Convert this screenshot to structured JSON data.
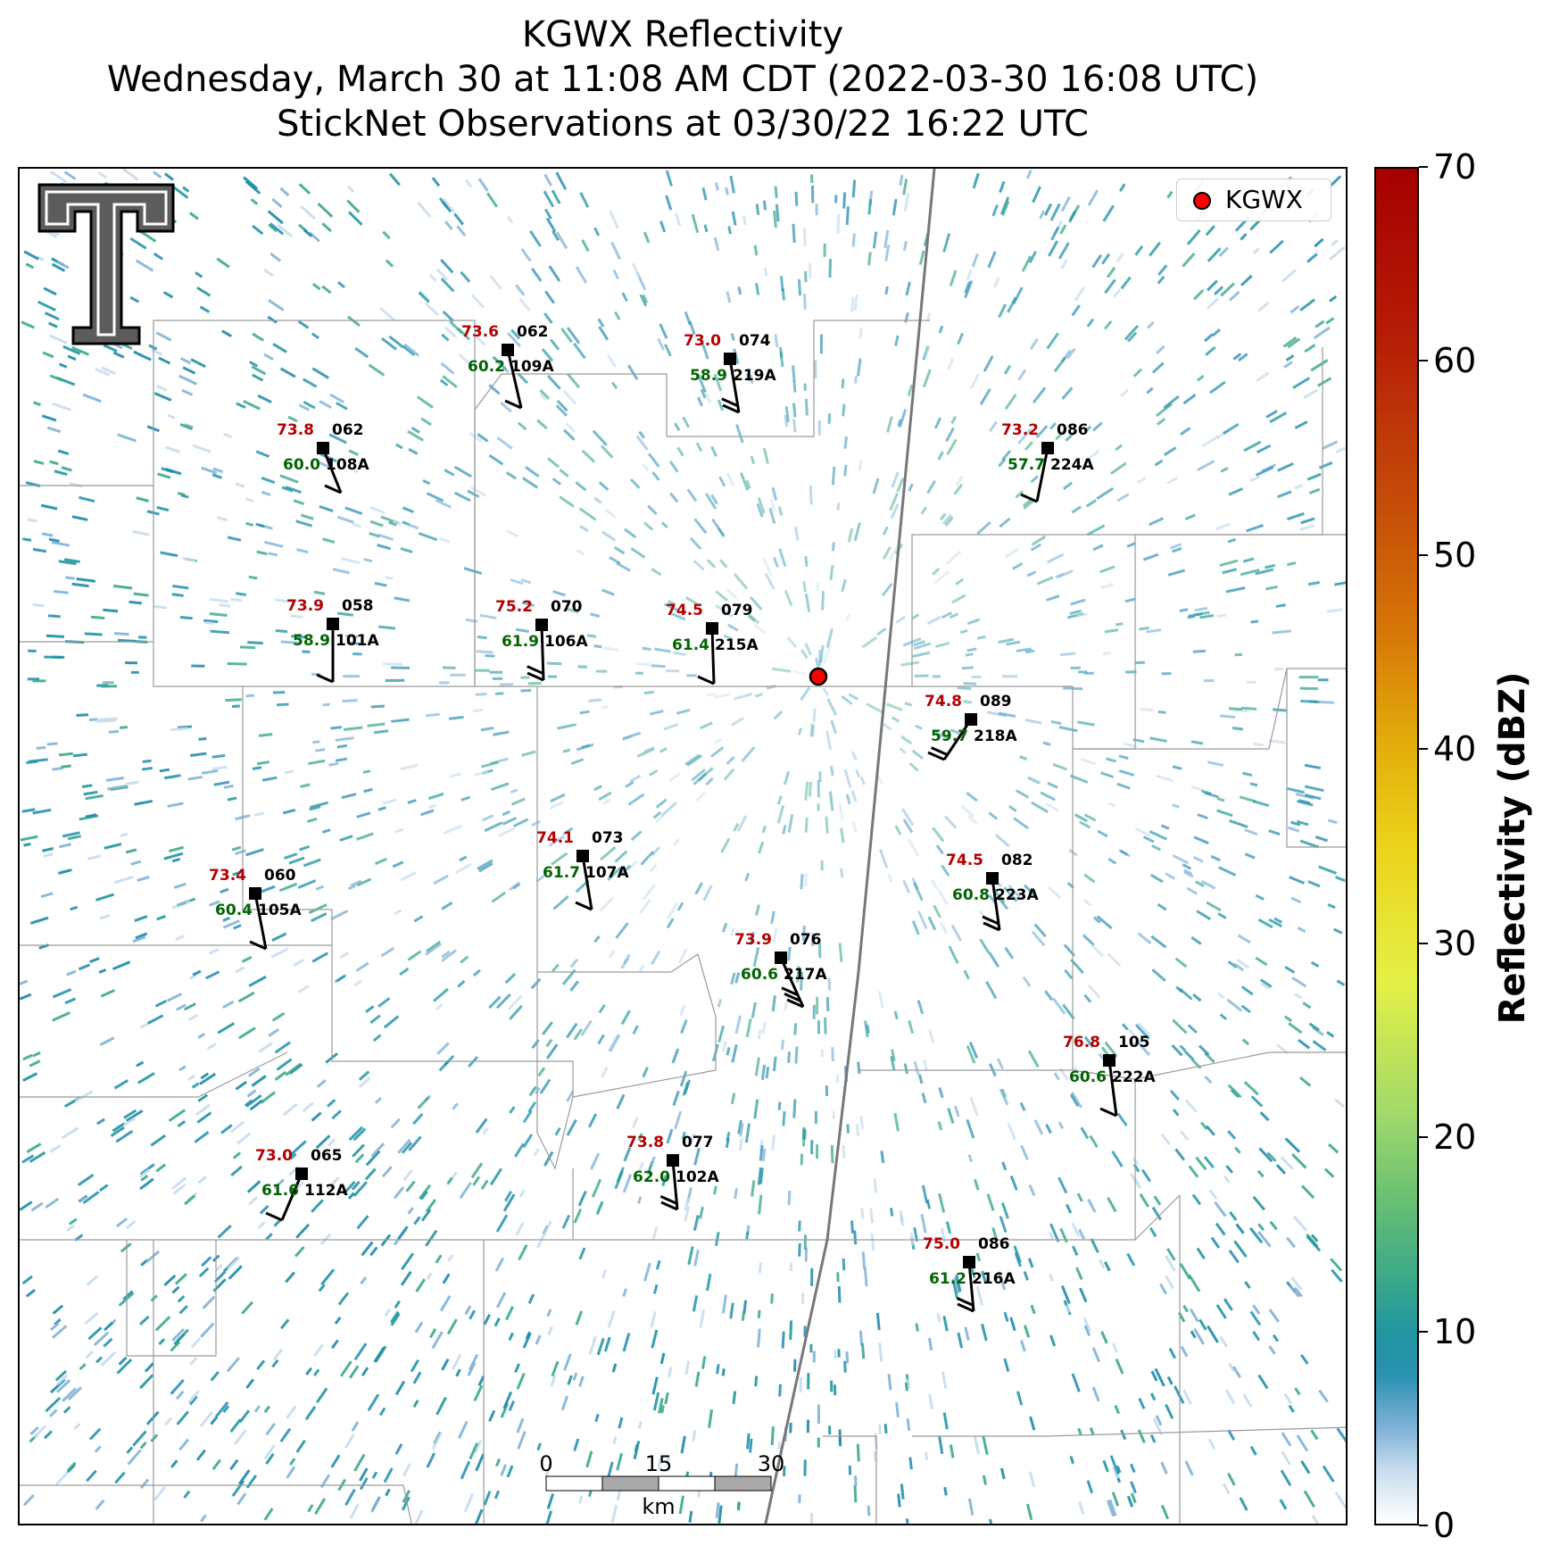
{
  "title": {
    "line1": "KGWX Reflectivity",
    "line2": "Wednesday, March 30 at 11:08 AM CDT (2022-03-30 16:08 UTC)",
    "line3": "StickNet Observations at 03/30/22 16:22 UTC"
  },
  "legend": {
    "label": "KGWX",
    "marker_color": "#ff0000"
  },
  "radar": {
    "name": "KGWX"
  },
  "colorbar": {
    "title": "Reflectivity (dBZ)",
    "ticks": [
      "0",
      "10",
      "20",
      "30",
      "40",
      "50",
      "60",
      "70"
    ],
    "min": 0,
    "max": 70
  },
  "scale_bar": {
    "labels": [
      "0",
      "15",
      "30"
    ],
    "unit": "km"
  },
  "logo": {
    "name": "texas-tech-double-t-logo"
  },
  "colors": {
    "temperature": "#b30000",
    "dewpoint": "#006400",
    "wind_id": "#000000"
  },
  "stations": [
    {
      "id": "108A",
      "temp": "73.8",
      "dew": "60.0",
      "wind": "062",
      "barb": [
        20,
        50
      ],
      "flags": 1
    },
    {
      "id": "109A",
      "temp": "73.6",
      "dew": "60.2",
      "wind": "062",
      "barb": [
        15,
        65
      ],
      "flags": 1
    },
    {
      "id": "219A",
      "temp": "73.0",
      "dew": "58.9",
      "wind": "074",
      "barb": [
        10,
        60
      ],
      "flags": 2
    },
    {
      "id": "224A",
      "temp": "73.2",
      "dew": "57.7",
      "wind": "086",
      "barb": [
        -12,
        60
      ],
      "flags": 1
    },
    {
      "id": "101A",
      "temp": "73.9",
      "dew": "58.9",
      "wind": "058",
      "barb": [
        0,
        65
      ],
      "flags": 1
    },
    {
      "id": "106A",
      "temp": "75.2",
      "dew": "61.9",
      "wind": "070",
      "barb": [
        2,
        62
      ],
      "flags": 2
    },
    {
      "id": "215A",
      "temp": "74.5",
      "dew": "61.4",
      "wind": "079",
      "barb": [
        2,
        62
      ],
      "flags": 1
    },
    {
      "id": "218A",
      "temp": "74.8",
      "dew": "59.7",
      "wind": "089",
      "barb": [
        -30,
        45
      ],
      "flags": 2
    },
    {
      "id": "107A",
      "temp": "74.1",
      "dew": "61.7",
      "wind": "073",
      "barb": [
        10,
        60
      ],
      "flags": 1
    },
    {
      "id": "105A",
      "temp": "73.4",
      "dew": "60.4",
      "wind": "060",
      "barb": [
        12,
        62
      ],
      "flags": 1
    },
    {
      "id": "223A",
      "temp": "74.5",
      "dew": "60.8",
      "wind": "082",
      "barb": [
        8,
        58
      ],
      "flags": 2
    },
    {
      "id": "217A",
      "temp": "73.9",
      "dew": "60.6",
      "wind": "076",
      "barb": [
        25,
        55
      ],
      "flags": 3
    },
    {
      "id": "222A",
      "temp": "76.8",
      "dew": "60.6",
      "wind": "105",
      "barb": [
        8,
        62
      ],
      "flags": 1
    },
    {
      "id": "112A",
      "temp": "73.0",
      "dew": "61.6",
      "wind": "065",
      "barb": [
        -22,
        52
      ],
      "flags": 1
    },
    {
      "id": "102A",
      "temp": "73.8",
      "dew": "62.0",
      "wind": "077",
      "barb": [
        5,
        55
      ],
      "flags": 2
    },
    {
      "id": "216A",
      "temp": "75.0",
      "dew": "61.2",
      "wind": "086",
      "barb": [
        5,
        55
      ],
      "flags": 2
    }
  ]
}
